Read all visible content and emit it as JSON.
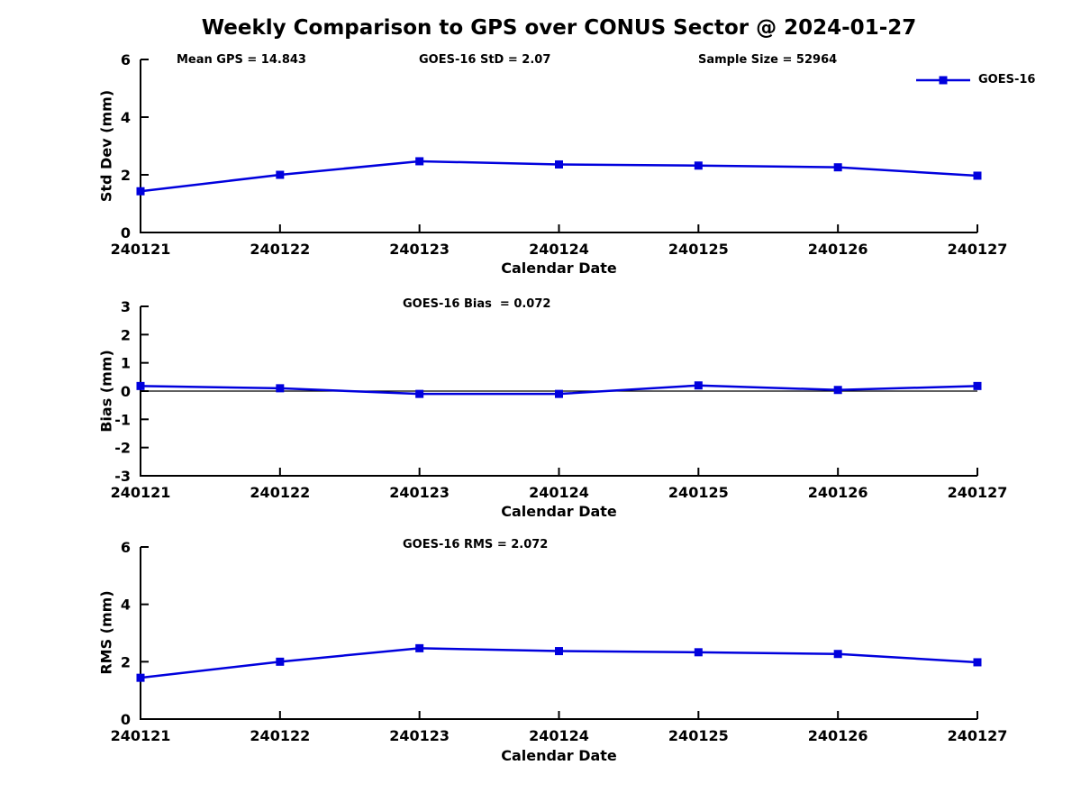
{
  "figure": {
    "title": "Weekly Comparison to GPS over CONUS Sector @ 2024-01-27",
    "background_color": "#ffffff",
    "series_color": "#0000dd",
    "axis_color": "#000000",
    "legend": {
      "label": "GOES-16",
      "position": "top-right",
      "marker": "filled-square"
    }
  },
  "chart_data": [
    {
      "type": "line",
      "name": "stddev",
      "ylabel": "Std Dev (mm)",
      "xlabel": "Calendar Date",
      "ylim": [
        0,
        6
      ],
      "yticks": [
        0,
        2,
        4,
        6
      ],
      "grid": false,
      "categories": [
        "240121",
        "240122",
        "240123",
        "240124",
        "240125",
        "240126",
        "240127"
      ],
      "series": [
        {
          "name": "GOES-16",
          "values": [
            1.43,
            2.0,
            2.47,
            2.36,
            2.32,
            2.26,
            1.97
          ]
        }
      ],
      "annotations": [
        "Mean GPS = 14.843",
        "GOES-16 StD = 2.07",
        "Sample Size = 52964"
      ],
      "zero_line": false
    },
    {
      "type": "line",
      "name": "bias",
      "ylabel": "Bias (mm)",
      "xlabel": "Calendar Date",
      "ylim": [
        -3,
        3
      ],
      "yticks": [
        3,
        2,
        1,
        0,
        -1,
        -2,
        -3
      ],
      "grid": false,
      "categories": [
        "240121",
        "240122",
        "240123",
        "240124",
        "240125",
        "240126",
        "240127"
      ],
      "series": [
        {
          "name": "GOES-16",
          "values": [
            0.18,
            0.1,
            -0.1,
            -0.1,
            0.2,
            0.04,
            0.18
          ]
        }
      ],
      "annotations": [
        "GOES-16 Bias  = 0.072"
      ],
      "zero_line": true
    },
    {
      "type": "line",
      "name": "rms",
      "ylabel": "RMS (mm)",
      "xlabel": "Calendar Date",
      "ylim": [
        0,
        6
      ],
      "yticks": [
        0,
        2,
        4,
        6
      ],
      "grid": false,
      "categories": [
        "240121",
        "240122",
        "240123",
        "240124",
        "240125",
        "240126",
        "240127"
      ],
      "series": [
        {
          "name": "GOES-16",
          "values": [
            1.44,
            2.0,
            2.47,
            2.37,
            2.33,
            2.27,
            1.98
          ]
        }
      ],
      "annotations": [
        "GOES-16 RMS = 2.072"
      ],
      "zero_line": false
    }
  ]
}
